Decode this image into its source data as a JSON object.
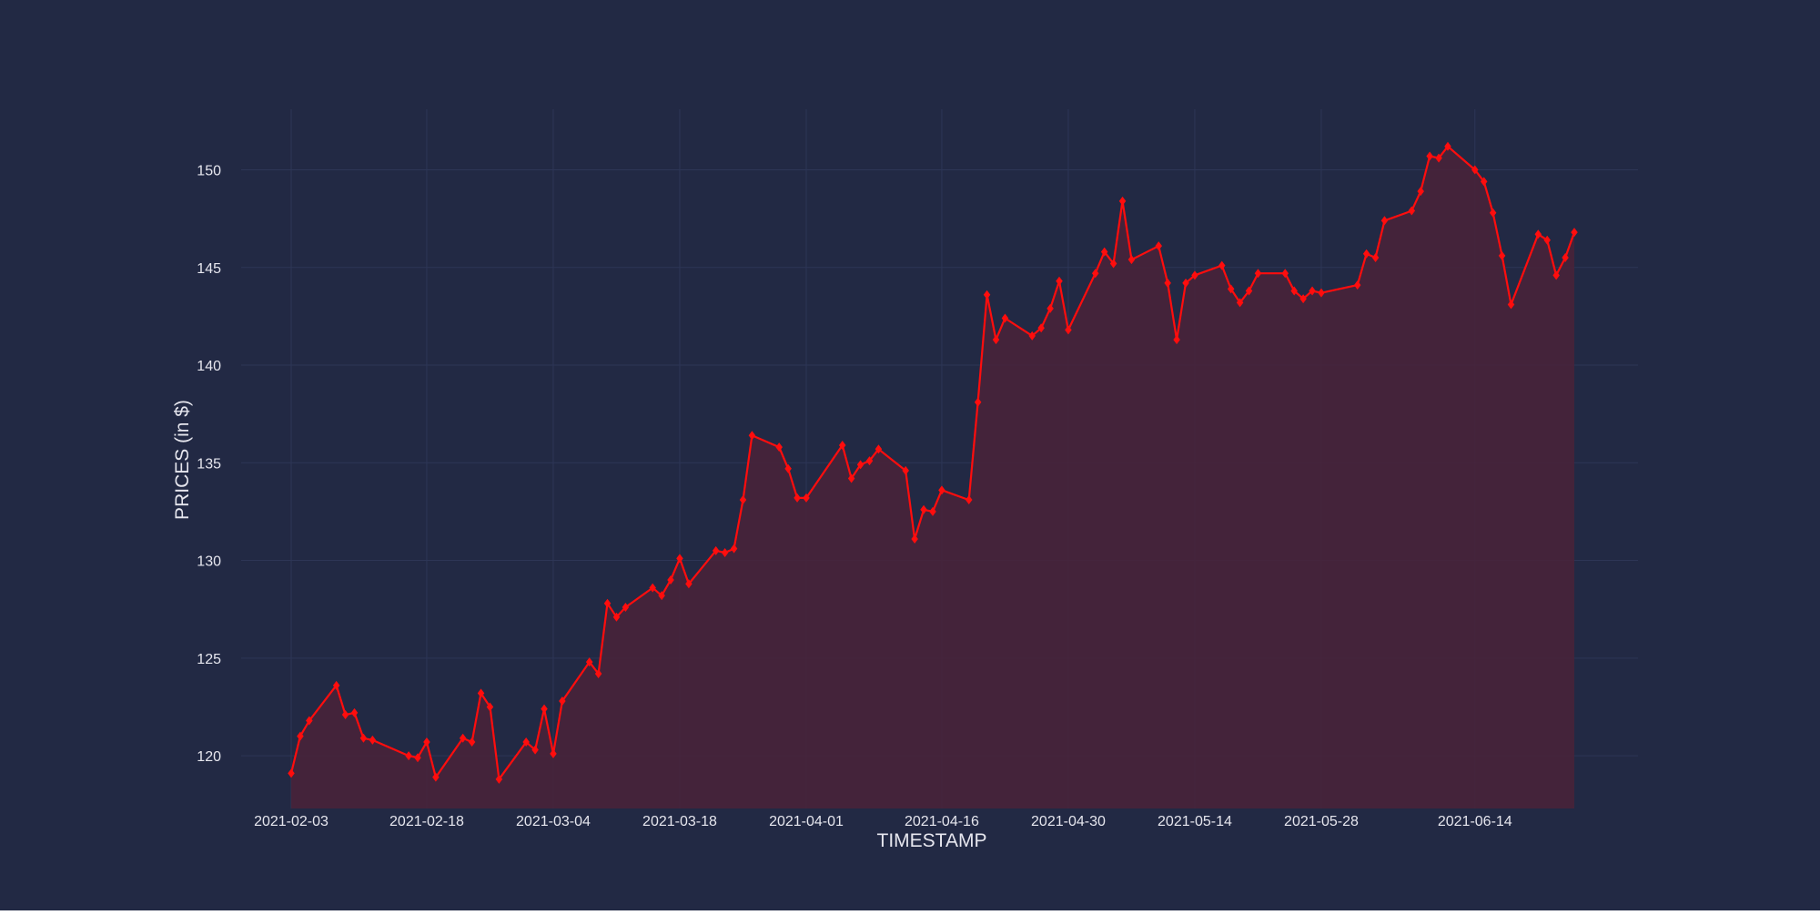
{
  "chart_data": {
    "type": "area",
    "title": "",
    "xlabel": "TIMESTAMP",
    "ylabel": "PRICES (in $)",
    "x_start": "2021-02-03",
    "x_end": "2021-06-23",
    "ylim": [
      117.3,
      153.1
    ],
    "y_ticks": [
      "120",
      "125",
      "130",
      "135",
      "140",
      "145",
      "150"
    ],
    "x_ticks": [
      "2021-02-03",
      "2021-02-18",
      "2021-03-04",
      "2021-03-18",
      "2021-04-01",
      "2021-04-16",
      "2021-04-30",
      "2021-05-14",
      "2021-05-28",
      "2021-06-14"
    ],
    "grid": true,
    "legend": "none",
    "colors": {
      "background": "#222944",
      "line": "#ff0d0d",
      "area_fill": "#4a2238",
      "grid": "#2d3656",
      "text": "#e6e6ee"
    },
    "series": [
      {
        "x": [
          "2021-02-03",
          "2021-02-04",
          "2021-02-05",
          "2021-02-08",
          "2021-02-09",
          "2021-02-10",
          "2021-02-11",
          "2021-02-12",
          "2021-02-16",
          "2021-02-17",
          "2021-02-18",
          "2021-02-19",
          "2021-02-22",
          "2021-02-23",
          "2021-02-24",
          "2021-02-25",
          "2021-02-26",
          "2021-03-01",
          "2021-03-02",
          "2021-03-03",
          "2021-03-04",
          "2021-03-05",
          "2021-03-08",
          "2021-03-09",
          "2021-03-10",
          "2021-03-11",
          "2021-03-12",
          "2021-03-15",
          "2021-03-16",
          "2021-03-17",
          "2021-03-18",
          "2021-03-19",
          "2021-03-22",
          "2021-03-23",
          "2021-03-24",
          "2021-03-25",
          "2021-03-26",
          "2021-03-29",
          "2021-03-30",
          "2021-03-31",
          "2021-04-01",
          "2021-04-05",
          "2021-04-06",
          "2021-04-07",
          "2021-04-08",
          "2021-04-09",
          "2021-04-12",
          "2021-04-13",
          "2021-04-14",
          "2021-04-15",
          "2021-04-16",
          "2021-04-19",
          "2021-04-20",
          "2021-04-21",
          "2021-04-22",
          "2021-04-23",
          "2021-04-26",
          "2021-04-27",
          "2021-04-28",
          "2021-04-29",
          "2021-04-30",
          "2021-05-03",
          "2021-05-04",
          "2021-05-05",
          "2021-05-06",
          "2021-05-07",
          "2021-05-10",
          "2021-05-11",
          "2021-05-12",
          "2021-05-13",
          "2021-05-14",
          "2021-05-17",
          "2021-05-18",
          "2021-05-19",
          "2021-05-20",
          "2021-05-21",
          "2021-05-24",
          "2021-05-25",
          "2021-05-26",
          "2021-05-27",
          "2021-05-28",
          "2021-06-01",
          "2021-06-02",
          "2021-06-03",
          "2021-06-04",
          "2021-06-07",
          "2021-06-08",
          "2021-06-09",
          "2021-06-10",
          "2021-06-11",
          "2021-06-14",
          "2021-06-15",
          "2021-06-16",
          "2021-06-17",
          "2021-06-18",
          "2021-06-21",
          "2021-06-22",
          "2021-06-23",
          "2021-06-24",
          "2021-06-25"
        ],
        "values": [
          119.1,
          121.0,
          121.8,
          123.6,
          122.1,
          122.2,
          120.9,
          120.8,
          120.0,
          119.9,
          120.7,
          118.9,
          120.9,
          120.7,
          123.2,
          122.5,
          118.8,
          120.7,
          120.3,
          122.4,
          120.1,
          122.8,
          124.8,
          124.2,
          127.8,
          127.1,
          127.6,
          128.6,
          128.2,
          129.0,
          130.1,
          128.8,
          130.5,
          130.4,
          130.6,
          133.1,
          136.4,
          135.8,
          134.7,
          133.2,
          133.2,
          135.9,
          134.2,
          134.9,
          135.1,
          135.7,
          134.6,
          131.1,
          132.6,
          132.5,
          133.6,
          133.1,
          138.1,
          143.6,
          141.3,
          142.4,
          141.5,
          141.9,
          142.9,
          144.3,
          141.8,
          144.7,
          145.8,
          145.2,
          148.4,
          145.4,
          146.1,
          144.2,
          141.3,
          144.2,
          144.6,
          145.1,
          143.9,
          143.2,
          143.8,
          144.7,
          144.7,
          143.8,
          143.4,
          143.8,
          143.7,
          144.1,
          145.7,
          145.5,
          147.4,
          147.9,
          148.9,
          150.7,
          150.6,
          151.2,
          150.0,
          149.4,
          147.8,
          145.6,
          143.1,
          146.7,
          146.4,
          144.6,
          145.5,
          146.8
        ]
      }
    ]
  }
}
